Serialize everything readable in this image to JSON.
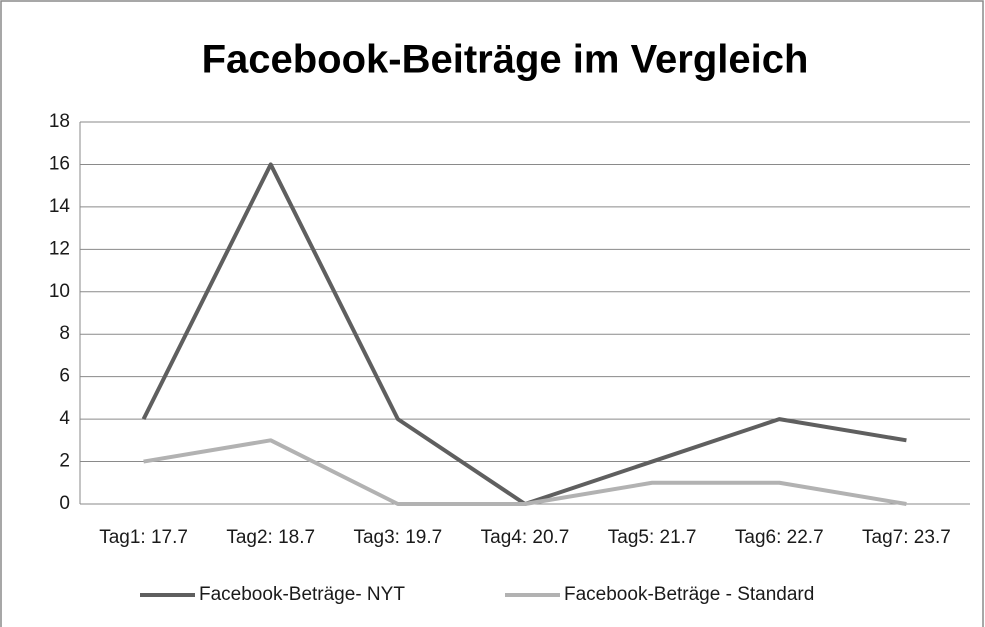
{
  "chart_data": {
    "type": "line",
    "title": "Facebook-Beiträge im Vergleich",
    "categories": [
      "Tag1: 17.7",
      "Tag2: 18.7",
      "Tag3: 19.7",
      "Tag4: 20.7",
      "Tag5: 21.7",
      "Tag6: 22.7",
      "Tag7: 23.7"
    ],
    "series": [
      {
        "name": "Facebook-Beträge- NYT",
        "color": "#5f5f5f",
        "values": [
          4,
          16,
          4,
          0,
          2,
          4,
          3
        ]
      },
      {
        "name": "Facebook-Beträge - Standard",
        "color": "#b2b2b2",
        "values": [
          2,
          3,
          0,
          0,
          1,
          1,
          0
        ]
      }
    ],
    "ylim": [
      0,
      18
    ],
    "yticks": [
      0,
      2,
      4,
      6,
      8,
      10,
      12,
      14,
      16,
      18
    ],
    "grid": true,
    "legend": "bottom"
  }
}
